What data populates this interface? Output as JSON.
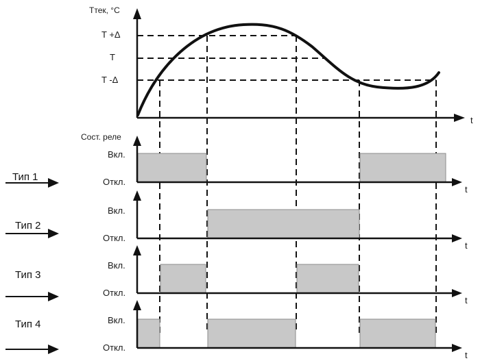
{
  "top_chart": {
    "y_axis_label": "Tтек, °C",
    "x_axis_label": "t",
    "levels": {
      "upper": "T +Δ",
      "setpoint": "T",
      "lower": "T -Δ"
    }
  },
  "relay_section_label": "Сост. реле",
  "state_labels": {
    "on": "Вкл.",
    "off": "Откл."
  },
  "relay_types": [
    {
      "label": "Тип 1",
      "on_intervals": [
        [
          0,
          1
        ],
        [
          4,
          5
        ]
      ]
    },
    {
      "label": "Тип 2",
      "on_intervals": [
        [
          1,
          3
        ]
      ]
    },
    {
      "label": "Тип 3",
      "on_intervals": [
        [
          0.5,
          1
        ],
        [
          2,
          3
        ]
      ]
    },
    {
      "label": "Тип 4",
      "on_intervals": [
        [
          0,
          0.5
        ],
        [
          1,
          2
        ],
        [
          3,
          4
        ]
      ]
    }
  ],
  "time_markers": [
    "t_cross_lower_rising",
    "t_cross_upper_rising",
    "t_cross_upper_falling",
    "t_cross_lower_falling",
    "t_cross_lower_rising_2"
  ]
}
